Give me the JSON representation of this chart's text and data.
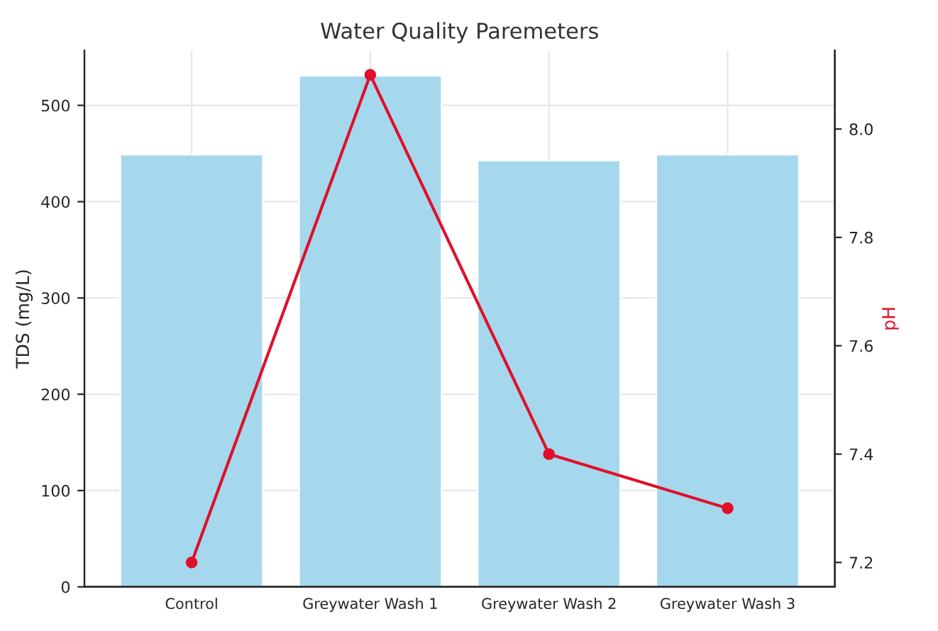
{
  "chart_data": {
    "type": "bar",
    "title": "Water Quality Paremeters",
    "ylabel": "TDS (mg/L)",
    "y2label": "pH",
    "categories": [
      "Control",
      "Greywater Wash 1",
      "Greywater Wash 2",
      "Greywater Wash 3"
    ],
    "series": [
      {
        "color": "#a6d8ed",
        "values": [
          449,
          531,
          443,
          449
        ]
      },
      {
        "type": "line",
        "axis": "y2",
        "color": "#e0102a",
        "values": [
          7.2,
          8.1,
          7.4,
          7.3
        ]
      }
    ],
    "ylim": [
      0,
      557
    ],
    "yticks": [
      0,
      100,
      200,
      300,
      400,
      500
    ],
    "y2lim": [
      7.155,
      8.145
    ],
    "y2ticks": [
      7.2,
      7.4,
      7.6,
      7.8,
      {
        "value": 8,
        "label": "8.0"
      }
    ],
    "grid": true,
    "marker": "circle",
    "line_style": "solid"
  }
}
